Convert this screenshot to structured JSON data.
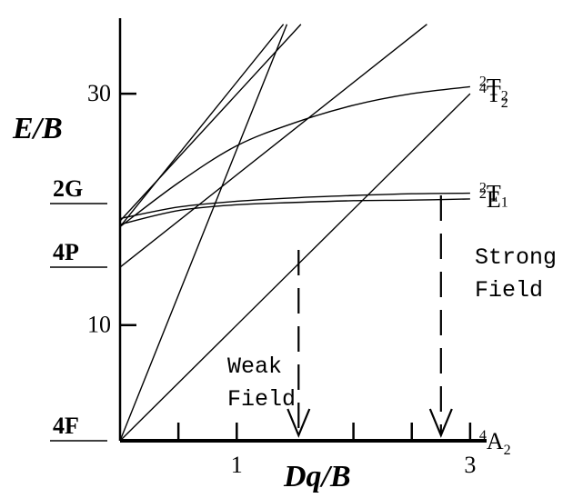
{
  "chart_data": {
    "type": "line",
    "title": "",
    "ylabel": "E/B",
    "xlabel": "Dq/B",
    "xlim": [
      0,
      3.1
    ],
    "ylim": [
      0,
      36
    ],
    "grid": false,
    "legend": "none",
    "x_ticks": [
      {
        "value": 1,
        "label": "1"
      },
      {
        "value": 3,
        "label": "3"
      }
    ],
    "x_minor_ticks": [
      0.5,
      2,
      2.5
    ],
    "y_ticks": [
      {
        "value": 10,
        "label": "10"
      },
      {
        "value": 30,
        "label": "30"
      }
    ],
    "free_ion_terms": [
      {
        "label": "2G",
        "y": 20.5
      },
      {
        "label": "4P",
        "y": 15
      },
      {
        "label": "4F",
        "y": 0
      }
    ],
    "series": [
      {
        "name": "2T2",
        "label_base": "T",
        "label_sup": "2",
        "label_sub": "2",
        "x": [
          0,
          0.5,
          1,
          1.5,
          2,
          2.5,
          3
        ],
        "y": [
          18.5,
          22.3,
          25.5,
          27.5,
          29.0,
          30.0,
          30.6
        ]
      },
      {
        "name": "4T2",
        "label_base": "T",
        "label_sup": "4",
        "label_sub": "2",
        "x": [
          0,
          3
        ],
        "y": [
          0,
          30
        ]
      },
      {
        "name": "2T1",
        "label_base": "T",
        "label_sup": "2",
        "label_sub": "1",
        "x": [
          0,
          0.5,
          1,
          1.5,
          2,
          2.5,
          3
        ],
        "y": [
          19.2,
          20.2,
          20.7,
          21.0,
          21.2,
          21.35,
          21.4
        ]
      },
      {
        "name": "2E",
        "label_base": "E",
        "label_sup": "2",
        "label_sub": "",
        "x": [
          0,
          0.5,
          1,
          1.5,
          2,
          2.5,
          3
        ],
        "y": [
          18.7,
          19.9,
          20.4,
          20.6,
          20.75,
          20.8,
          20.9
        ]
      },
      {
        "name": "4A2",
        "label_base": "A",
        "label_sup": "4",
        "label_sub": "2",
        "x": [
          0,
          3
        ],
        "y": [
          0,
          0
        ]
      },
      {
        "name": "",
        "x": [
          0,
          2.63
        ],
        "y": [
          15,
          36
        ]
      },
      {
        "name": "",
        "x": [
          0,
          1.43
        ],
        "y": [
          0,
          36
        ]
      },
      {
        "name": "",
        "x": [
          0,
          1.4
        ],
        "y": [
          18.5,
          36
        ]
      },
      {
        "name": "",
        "x": [
          0,
          1.55
        ],
        "y": [
          19,
          36
        ]
      }
    ],
    "markers": [
      {
        "x": 1.53,
        "label_lines": [
          "Weak",
          "Field"
        ]
      },
      {
        "x": 2.75,
        "label_lines": [
          "Strong",
          "Field"
        ]
      }
    ]
  },
  "colors": {
    "line": "#000000",
    "background": "#ffffff"
  }
}
